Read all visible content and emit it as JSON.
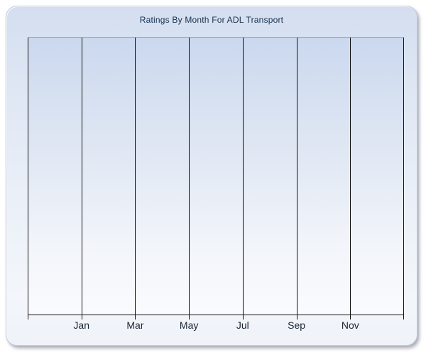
{
  "chart": {
    "title": "Ratings By Month For ADL Transport"
  },
  "chart_data": {
    "type": "line",
    "title": "Ratings By Month For ADL Transport",
    "categories": [
      "Jan",
      "Mar",
      "May",
      "Jul",
      "Sep",
      "Nov"
    ],
    "series": [],
    "xlabel": "",
    "ylabel": "",
    "x_gridline_count": 8,
    "y_axis_tick_labels": [],
    "grid": "vertical-only",
    "legend": "none"
  },
  "colors": {
    "panel_gradient_top": "#d4def0",
    "panel_gradient_bottom": "#eff3f9",
    "panel_border": "#c3cddd",
    "plot_gradient_top": "#cbd8ee",
    "plot_gradient_bottom": "#fafbfe",
    "plot_top_border": "#96a1b7",
    "line_color": "#111111",
    "title_color": "#17304f",
    "label_color": "#1a2430"
  }
}
